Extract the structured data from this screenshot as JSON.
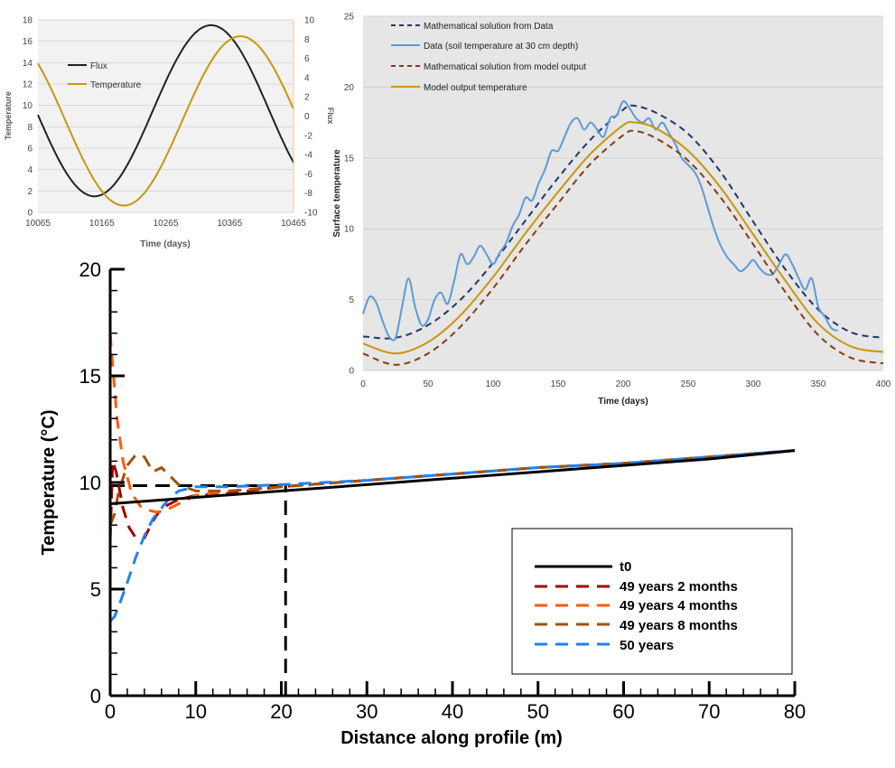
{
  "chart_data": [
    {
      "id": "flux_temp",
      "type": "line",
      "xlabel": "Time (days)",
      "ylabel": "Temperature",
      "y2label": "Flux",
      "xlim": [
        10065,
        10465
      ],
      "ylim": [
        0,
        18
      ],
      "y2lim": [
        -10,
        10
      ],
      "xticks": [
        10065,
        10165,
        10265,
        10365,
        10465
      ],
      "yticks": [
        0,
        2,
        4,
        6,
        8,
        10,
        12,
        14,
        16,
        18
      ],
      "y2ticks": [
        -10,
        -8,
        -6,
        -4,
        -2,
        0,
        2,
        4,
        6,
        8,
        10
      ],
      "legend_position": "upper-left",
      "series": [
        {
          "name": "Flux",
          "color": "#222222",
          "axis": "left",
          "mean": 9.5,
          "amplitude": 8,
          "period_days": 365,
          "peak_day": 10336
        },
        {
          "name": "Temperature",
          "color": "#c8960c",
          "axis": "right",
          "mean": -0.5,
          "amplitude": 8.8,
          "period_days": 365,
          "peak_day": 10382
        }
      ]
    },
    {
      "id": "surface_temp",
      "type": "line",
      "xlabel": "Time (days)",
      "ylabel": "Surface temperature",
      "xlim": [
        0,
        400
      ],
      "ylim": [
        0,
        25
      ],
      "xticks": [
        0,
        50,
        100,
        150,
        200,
        250,
        300,
        350,
        400
      ],
      "yticks": [
        0,
        5,
        10,
        15,
        20,
        25
      ],
      "legend_position": "top-left",
      "grid": true,
      "series": [
        {
          "name": "Mathematical solution from Data",
          "color": "#1f3864",
          "style": "dashed",
          "x": [
            0,
            25,
            50,
            75,
            100,
            125,
            150,
            175,
            200,
            207,
            225,
            250,
            275,
            300,
            325,
            350,
            375,
            400
          ],
          "y": [
            2.4,
            2.3,
            3.2,
            5.0,
            7.6,
            10.6,
            13.6,
            16.3,
            18.4,
            18.7,
            18.2,
            16.7,
            14.0,
            10.5,
            7.1,
            4.3,
            2.7,
            2.3
          ]
        },
        {
          "name": "Data (soil temperature at 30 cm depth)",
          "color": "#5b9bd5",
          "style": "solid",
          "x": [
            0,
            5,
            10,
            15,
            20,
            25,
            30,
            35,
            40,
            45,
            50,
            55,
            60,
            65,
            70,
            75,
            80,
            85,
            90,
            95,
            100,
            105,
            110,
            115,
            120,
            125,
            130,
            135,
            140,
            145,
            150,
            155,
            160,
            165,
            170,
            175,
            180,
            185,
            190,
            195,
            200,
            205,
            210,
            215,
            220,
            225,
            230,
            235,
            240,
            245,
            250,
            255,
            260,
            265,
            270,
            275,
            280,
            285,
            290,
            295,
            300,
            305,
            310,
            315,
            320,
            325,
            330,
            335,
            340,
            345,
            350,
            355,
            360,
            365
          ],
          "y": [
            4.0,
            5.2,
            4.8,
            3.5,
            2.4,
            2.3,
            4.5,
            6.5,
            4.5,
            3.2,
            3.6,
            5.0,
            5.5,
            4.7,
            6.3,
            8.2,
            7.5,
            8.0,
            8.8,
            8.2,
            7.5,
            8.3,
            9.0,
            10.2,
            11.0,
            12.2,
            12.0,
            13.2,
            14.2,
            15.5,
            15.5,
            16.5,
            17.5,
            17.8,
            17.0,
            17.5,
            17.0,
            16.5,
            17.8,
            18.0,
            19.0,
            18.5,
            17.8,
            17.5,
            17.8,
            17.0,
            17.5,
            16.8,
            16.0,
            15.0,
            14.5,
            14.0,
            13.0,
            11.5,
            10.0,
            8.8,
            8.0,
            7.5,
            7.0,
            7.3,
            7.8,
            7.2,
            6.8,
            6.8,
            7.5,
            8.2,
            7.5,
            6.5,
            5.7,
            6.5,
            4.5,
            3.8,
            3.0,
            2.8
          ]
        },
        {
          "name": "Mathematical solution from model output",
          "color": "#843c0c",
          "style": "dashed",
          "x": [
            0,
            25,
            50,
            75,
            100,
            125,
            150,
            175,
            200,
            209,
            225,
            250,
            275,
            300,
            325,
            350,
            375,
            400
          ],
          "y": [
            1.2,
            0.4,
            1.2,
            3.1,
            5.8,
            8.9,
            11.8,
            14.6,
            16.6,
            16.9,
            16.4,
            14.8,
            12.2,
            8.9,
            5.5,
            2.5,
            0.9,
            0.5
          ]
        },
        {
          "name": "Model output temperature",
          "color": "#c8960c",
          "style": "solid",
          "x": [
            0,
            25,
            50,
            75,
            100,
            125,
            150,
            175,
            200,
            209,
            225,
            250,
            275,
            300,
            325,
            350,
            375,
            400
          ],
          "y": [
            1.9,
            1.2,
            2.0,
            3.9,
            6.6,
            9.7,
            12.6,
            15.3,
            17.3,
            17.5,
            17.1,
            15.5,
            12.9,
            9.6,
            6.3,
            3.3,
            1.7,
            1.3
          ]
        }
      ]
    },
    {
      "id": "profile",
      "type": "line",
      "xlabel": "Distance along profile (m)",
      "ylabel": "Temperature (°C)",
      "xlim": [
        0,
        80
      ],
      "ylim": [
        0,
        20
      ],
      "xticks": [
        0,
        10,
        20,
        30,
        40,
        50,
        60,
        70,
        80
      ],
      "yticks": [
        0,
        5,
        10,
        15,
        20
      ],
      "legend_position": "lower-right",
      "series": [
        {
          "name": "t0",
          "color": "#000000",
          "style": "solid",
          "x": [
            0,
            10,
            20,
            30,
            40,
            50,
            60,
            70,
            80
          ],
          "y": [
            9.0,
            9.3,
            9.6,
            9.9,
            10.2,
            10.5,
            10.8,
            11.1,
            11.5
          ]
        },
        {
          "name": "49 years 2 months",
          "color": "#a00000",
          "style": "dashed",
          "x": [
            0,
            0.3,
            0.7,
            1.5,
            2.2,
            3,
            4,
            5,
            6,
            8,
            10,
            14,
            20,
            30,
            40,
            50,
            60,
            70,
            80
          ],
          "y": [
            7.3,
            11.0,
            10.5,
            8.8,
            7.9,
            7.4,
            7.4,
            8.2,
            8.8,
            9.2,
            9.4,
            9.5,
            9.8,
            10.1,
            10.4,
            10.7,
            10.9,
            11.2,
            11.5
          ]
        },
        {
          "name": "49 years 4 months",
          "color": "#ff5a0a",
          "style": "dashed",
          "x": [
            0,
            0.3,
            0.8,
            1.5,
            2.5,
            3.5,
            4.5,
            5.5,
            6.5,
            8,
            10,
            14,
            20,
            30,
            40,
            50,
            60,
            70,
            80
          ],
          "y": [
            17.0,
            15.5,
            13.0,
            11.0,
            9.5,
            8.9,
            8.7,
            8.6,
            8.7,
            9.0,
            9.4,
            9.6,
            9.8,
            10.1,
            10.4,
            10.7,
            10.9,
            11.2,
            11.5
          ]
        },
        {
          "name": "49 years 8 months",
          "color": "#a0520a",
          "style": "dashed",
          "x": [
            0,
            0.5,
            1,
            2,
            3,
            4,
            5,
            6,
            7,
            8,
            10,
            14,
            20,
            30,
            40,
            50,
            60,
            70,
            80
          ],
          "y": [
            8.0,
            8.5,
            9.6,
            10.8,
            11.3,
            11.2,
            10.5,
            10.7,
            10.3,
            9.9,
            9.6,
            9.6,
            9.8,
            10.1,
            10.4,
            10.7,
            10.9,
            11.2,
            11.5
          ]
        },
        {
          "name": "50 years",
          "color": "#1e82f0",
          "style": "dashed",
          "x": [
            0,
            0.5,
            1,
            2,
            3,
            4,
            5,
            6,
            7,
            8,
            10,
            14,
            20,
            30,
            40,
            50,
            60,
            70,
            80
          ],
          "y": [
            3.5,
            3.7,
            4.2,
            5.3,
            6.5,
            7.5,
            8.3,
            8.8,
            9.3,
            9.6,
            9.8,
            9.8,
            9.9,
            10.1,
            10.4,
            10.7,
            10.9,
            11.2,
            11.5
          ]
        }
      ],
      "annotations": [
        {
          "kind": "horizontal-dashed",
          "color": "#000000",
          "y": 9.85,
          "x_from": 0,
          "x_to": 20.5
        },
        {
          "kind": "vertical-dashed",
          "color": "#000000",
          "x": 20.5,
          "y_from": 0,
          "y_to": 9.85
        }
      ]
    }
  ]
}
